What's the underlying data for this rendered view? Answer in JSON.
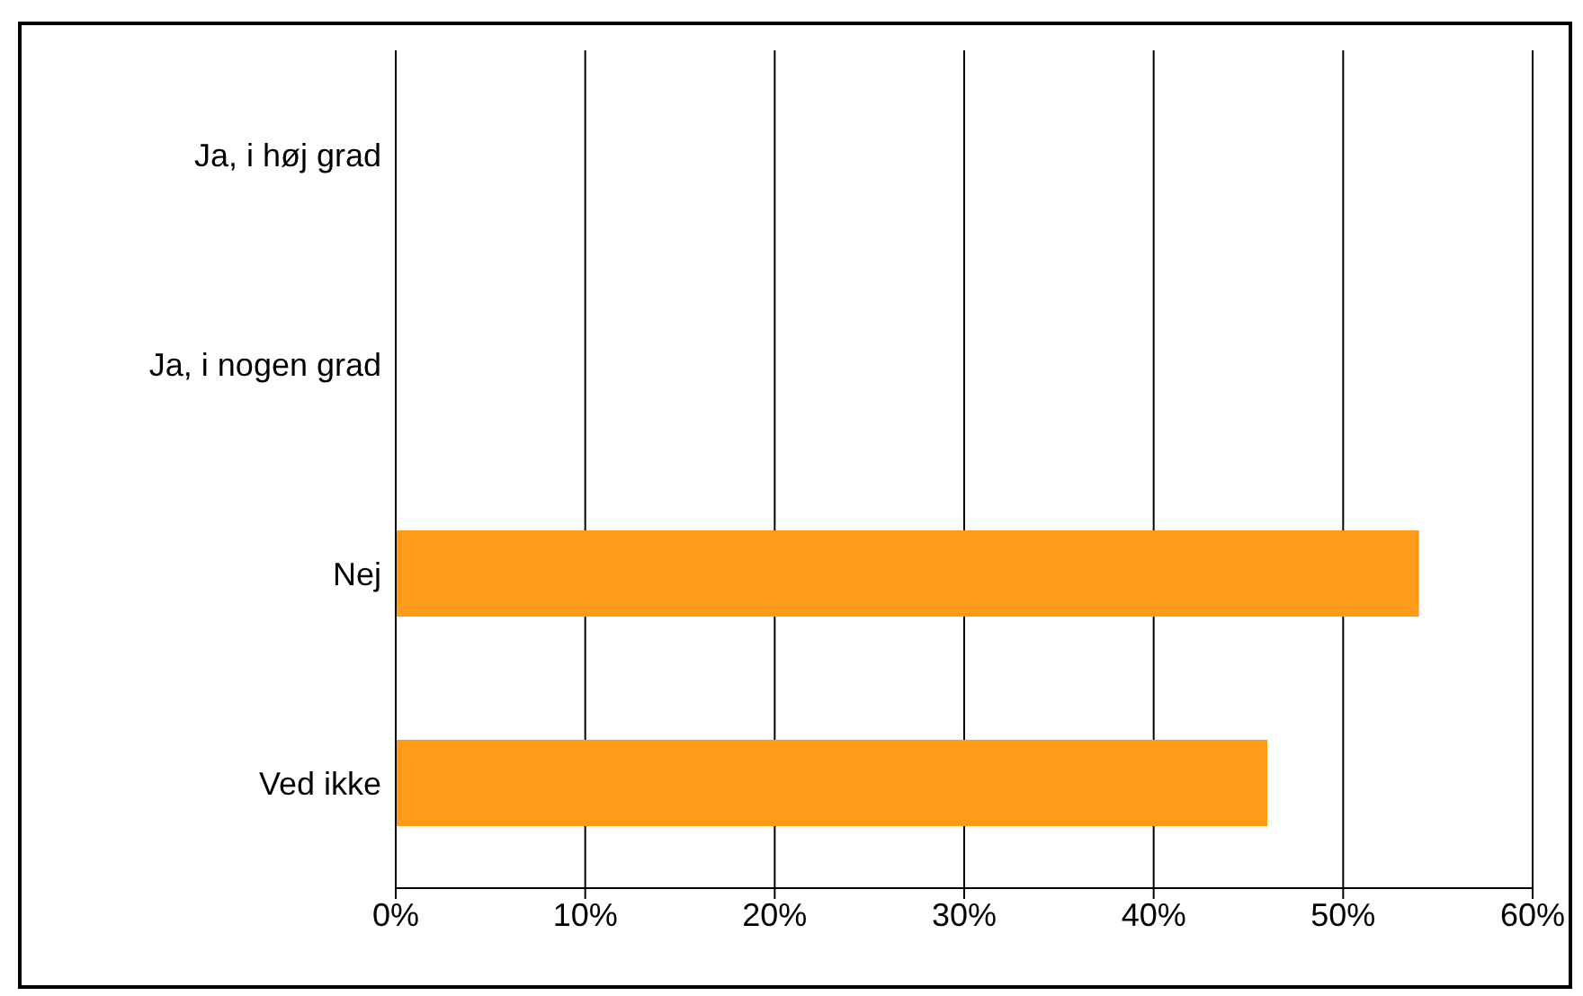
{
  "chart_data": {
    "type": "bar",
    "orientation": "horizontal",
    "categories": [
      "Ja, i høj grad",
      "Ja, i nogen grad",
      "Nej",
      "Ved ikke"
    ],
    "values": [
      null,
      null,
      54,
      46
    ],
    "color": "#ff9b19",
    "xlim": [
      0,
      60
    ],
    "xticks": [
      {
        "value": 0,
        "label": "0%"
      },
      {
        "value": 10,
        "label": "10%"
      },
      {
        "value": 20,
        "label": "20%"
      },
      {
        "value": 30,
        "label": "30%"
      },
      {
        "value": 40,
        "label": "40%"
      },
      {
        "value": 50,
        "label": "50%"
      },
      {
        "value": 60,
        "label": "60%"
      }
    ],
    "grid": "x",
    "legend": false
  }
}
